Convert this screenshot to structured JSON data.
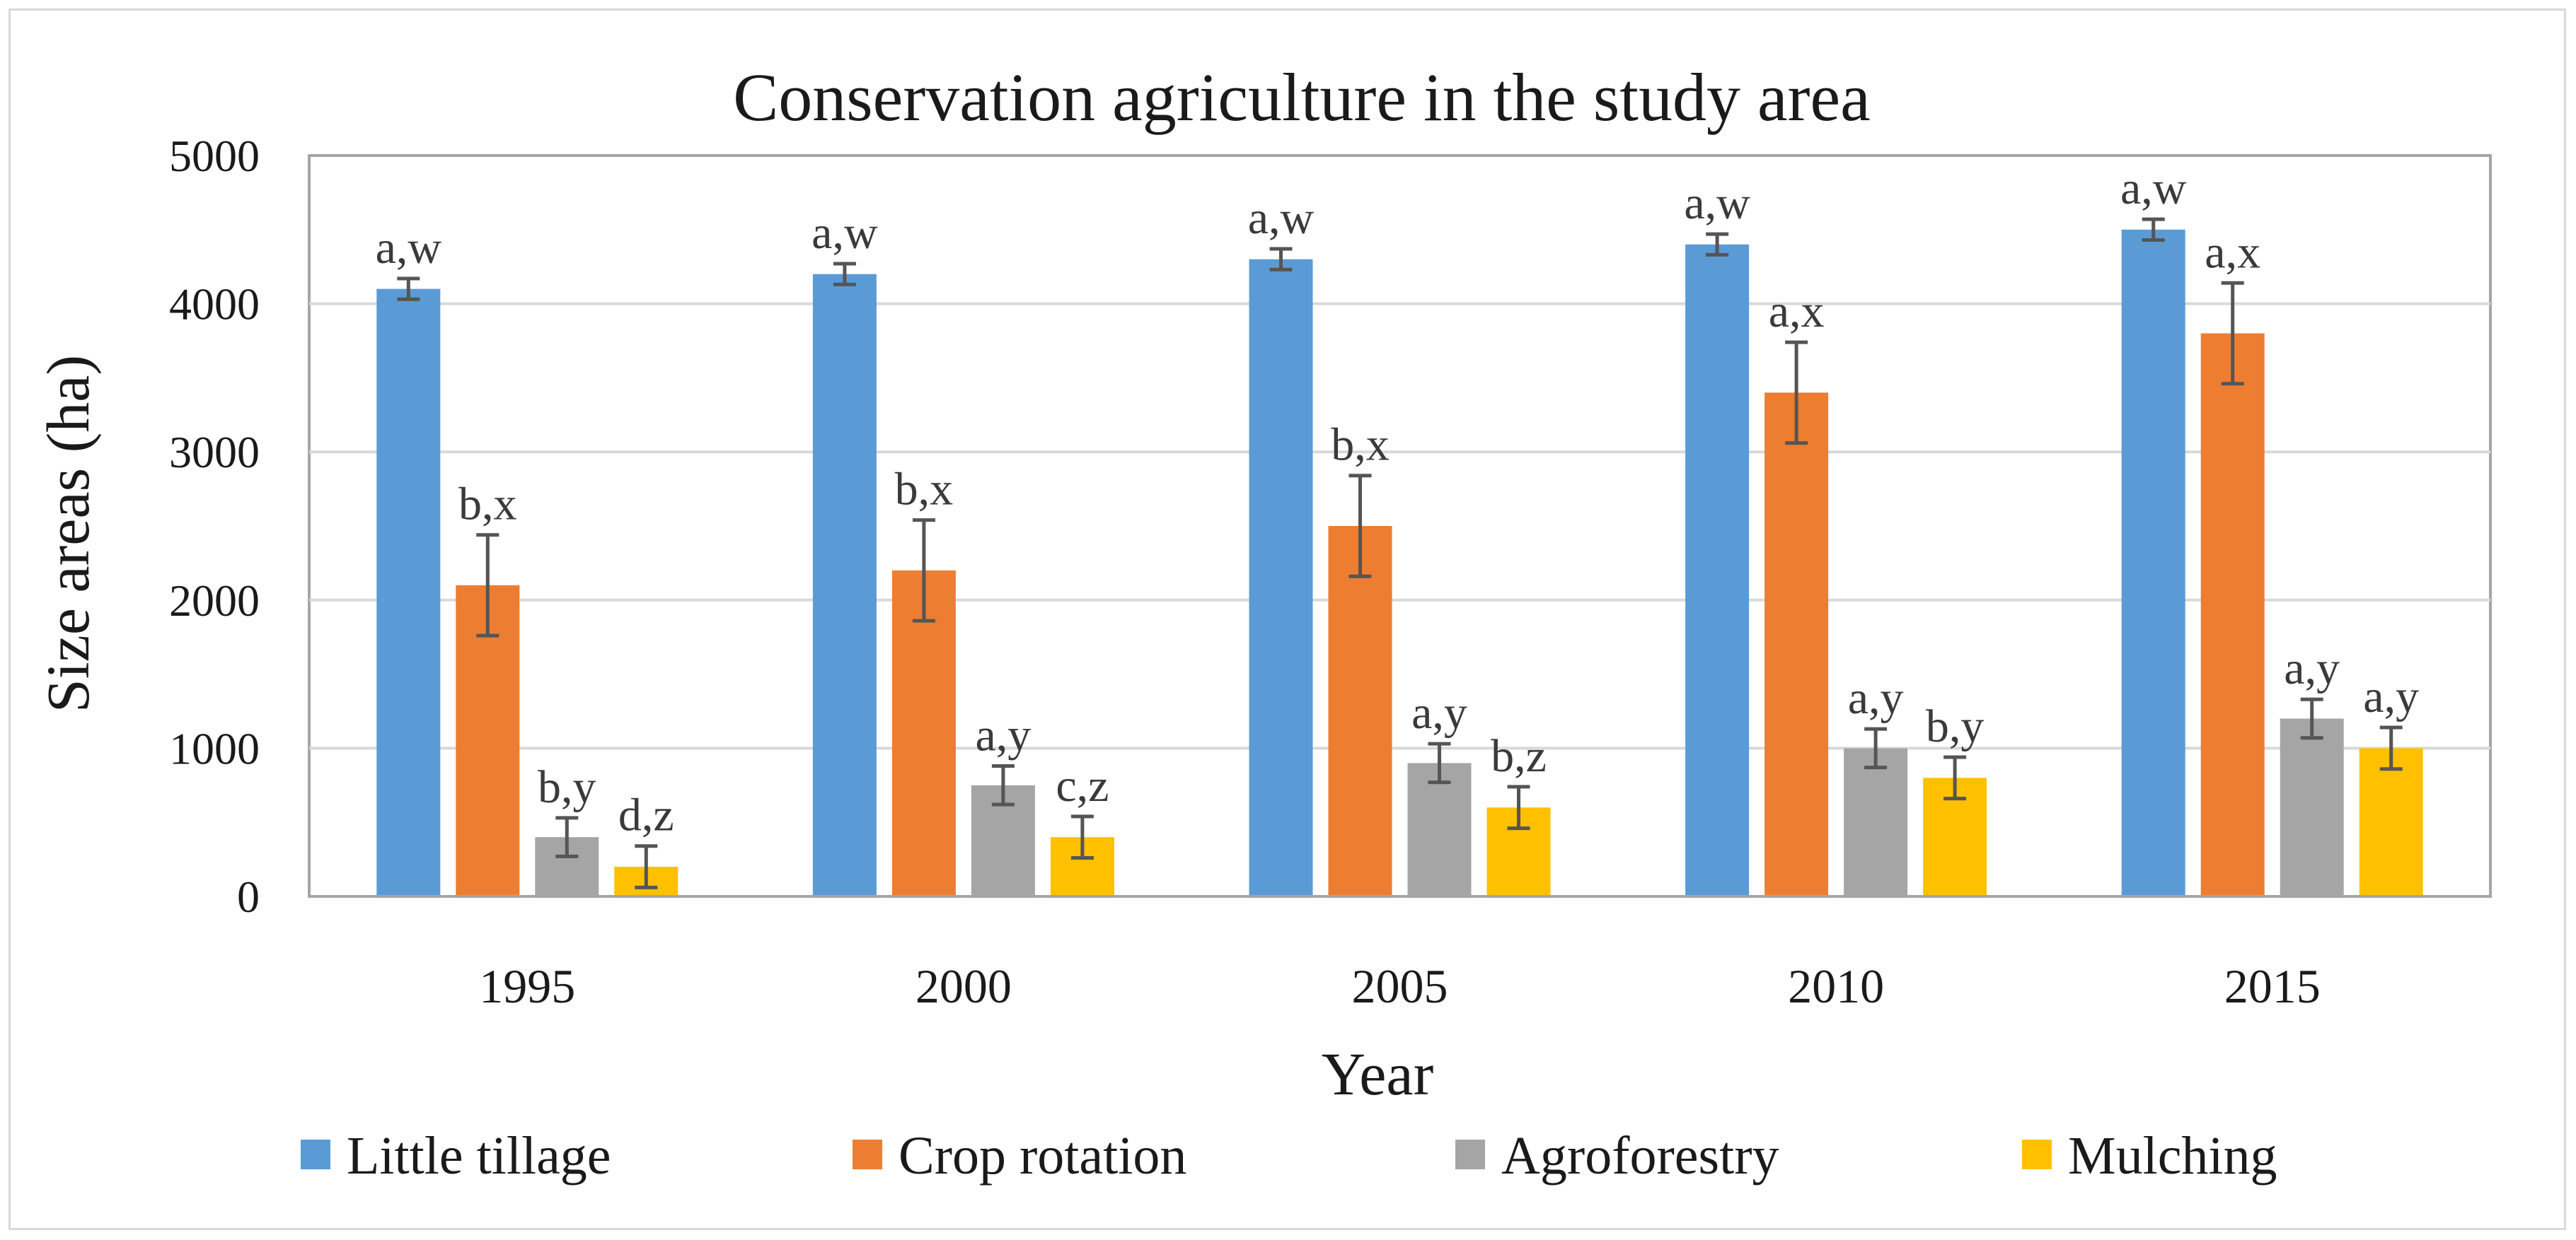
{
  "chart_data": {
    "type": "bar",
    "title": "Conservation agriculture in the study area",
    "xlabel": "Year",
    "ylabel": "Size areas (ha)",
    "ylim": [
      0,
      5000
    ],
    "yticks": [
      0,
      1000,
      2000,
      3000,
      4000,
      5000
    ],
    "grid": true,
    "legend_position": "bottom",
    "categories": [
      "1995",
      "2000",
      "2005",
      "2010",
      "2015"
    ],
    "series": [
      {
        "name": "Little tillage",
        "color": "#5b9bd5",
        "values": [
          4100,
          4200,
          4300,
          4400,
          4500
        ],
        "errors": [
          70,
          70,
          70,
          70,
          70
        ],
        "labels": [
          "a,w",
          "a,w",
          "a,w",
          "a,w",
          "a,w"
        ]
      },
      {
        "name": "Crop rotation",
        "color": "#ed7d31",
        "values": [
          2100,
          2200,
          2500,
          3400,
          3800
        ],
        "errors": [
          340,
          340,
          340,
          340,
          340
        ],
        "labels": [
          "b,x",
          "b,x",
          "b,x",
          "a,x",
          "a,x"
        ]
      },
      {
        "name": "Agroforestry",
        "color": "#a5a5a5",
        "values": [
          400,
          750,
          900,
          1000,
          1200
        ],
        "errors": [
          130,
          130,
          130,
          130,
          130
        ],
        "labels": [
          "b,y",
          "a,y",
          "a,y",
          "a,y",
          "a,y"
        ]
      },
      {
        "name": "Mulching",
        "color": "#ffc000",
        "values": [
          200,
          400,
          600,
          800,
          1000
        ],
        "errors": [
          140,
          140,
          140,
          140,
          140
        ],
        "labels": [
          "d,z",
          "c,z",
          "b,z",
          "b,y",
          "a,y"
        ]
      }
    ]
  }
}
